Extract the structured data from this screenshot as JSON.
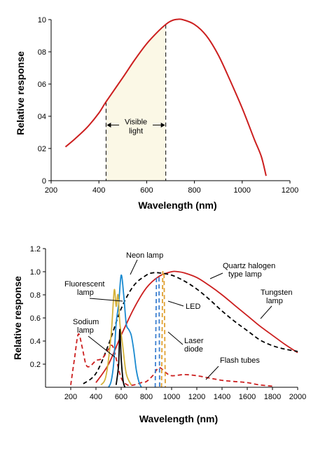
{
  "chart_data": [
    {
      "type": "line",
      "xlabel": "Wavelength (nm)",
      "ylabel": "Relative response",
      "xlim": [
        200,
        1200
      ],
      "ylim": [
        0,
        10
      ],
      "x_ticks": [
        200,
        400,
        600,
        800,
        1000,
        1200
      ],
      "x_tick_labels": [
        "200",
        "400",
        "600",
        "800",
        "1000",
        "1200"
      ],
      "y_ticks": [
        0,
        2,
        4,
        6,
        8,
        10
      ],
      "y_tick_labels": [
        "0",
        "02",
        "04",
        "06",
        "08",
        "10"
      ],
      "grid": false,
      "band": {
        "label_line1": "Visible",
        "label_line2": "light",
        "from": 430,
        "to": 680,
        "color": "#fbf8e6"
      },
      "series": [
        {
          "color": "#cc1f1f",
          "style": "solid",
          "x": [
            260,
            300,
            350,
            400,
            430,
            500,
            550,
            600,
            650,
            680,
            700,
            720,
            750,
            800,
            850,
            900,
            950,
            1000,
            1050,
            1080,
            1100
          ],
          "y": [
            2.1,
            2.6,
            3.3,
            4.2,
            4.9,
            6.4,
            7.5,
            8.5,
            9.3,
            9.7,
            9.9,
            10.0,
            10.0,
            9.7,
            9.0,
            7.8,
            6.2,
            4.5,
            2.6,
            1.5,
            0.3
          ]
        }
      ]
    },
    {
      "type": "line",
      "xlabel": "Wavelength (nm)",
      "ylabel": "Relative response",
      "xlim": [
        0,
        2000
      ],
      "ylim": [
        0,
        1.2
      ],
      "x_ticks": [
        200,
        400,
        600,
        800,
        1000,
        1200,
        1400,
        1600,
        1800,
        2000
      ],
      "x_tick_labels": [
        "200",
        "400",
        "600",
        "800",
        "1000",
        "1200",
        "1400",
        "1600",
        "1800",
        "2000"
      ],
      "y_ticks": [
        0.2,
        0.4,
        0.6,
        0.8,
        1.0,
        1.2
      ],
      "y_tick_labels": [
        "0.2",
        "0.4",
        "0.6",
        "0.8",
        "1.0",
        "1.2"
      ],
      "grid": false,
      "annotations": [
        {
          "text": "Neon lamp"
        },
        {
          "text": "Fluorescent"
        },
        {
          "text": "lamp"
        },
        {
          "text": "Sodium"
        },
        {
          "text": "lamp"
        },
        {
          "text": "Quartz halogen"
        },
        {
          "text": "type lamp"
        },
        {
          "text": "Tungsten"
        },
        {
          "text": "lamp"
        },
        {
          "text": "LED"
        },
        {
          "text": "Laser"
        },
        {
          "text": "diode"
        },
        {
          "text": "Flash tubes"
        }
      ],
      "series": [
        {
          "color": "#cc1f1f",
          "style": "solid",
          "x": [
            400,
            500,
            600,
            700,
            800,
            900,
            1000,
            1050,
            1100,
            1200,
            1300,
            1400,
            1500,
            1600,
            1700,
            1800,
            1900,
            2000
          ],
          "y": [
            0.04,
            0.2,
            0.45,
            0.68,
            0.86,
            0.96,
            1.0,
            1.0,
            0.99,
            0.95,
            0.88,
            0.8,
            0.71,
            0.62,
            0.53,
            0.45,
            0.37,
            0.3
          ]
        },
        {
          "color": "#000000",
          "style": "dashed",
          "x": [
            300,
            400,
            500,
            600,
            700,
            800,
            850,
            900,
            1000,
            1100,
            1200,
            1300,
            1400,
            1500,
            1600,
            1700,
            1800,
            1900,
            2000
          ],
          "y": [
            0.03,
            0.12,
            0.37,
            0.68,
            0.88,
            0.97,
            0.99,
            0.99,
            0.97,
            0.92,
            0.85,
            0.76,
            0.66,
            0.57,
            0.49,
            0.41,
            0.36,
            0.33,
            0.31
          ]
        },
        {
          "color": "#cc1f1f",
          "style": "dashed",
          "x": [
            200,
            230,
            260,
            290,
            320,
            350,
            400,
            450,
            500,
            530,
            560,
            600,
            650,
            700,
            760,
            800,
            850,
            900,
            950,
            1000,
            1100,
            1200,
            1300,
            1400,
            1500,
            1600,
            1700,
            1800
          ],
          "y": [
            0.02,
            0.25,
            0.46,
            0.35,
            0.2,
            0.18,
            0.23,
            0.25,
            0.33,
            0.36,
            0.25,
            0.08,
            0.02,
            0.02,
            0.04,
            0.05,
            0.1,
            0.17,
            0.13,
            0.1,
            0.11,
            0.1,
            0.08,
            0.06,
            0.05,
            0.04,
            0.02,
            0.01
          ]
        },
        {
          "color": "#1a8ad0",
          "style": "solid",
          "x": [
            500,
            520,
            540,
            560,
            580,
            600,
            620,
            640,
            660,
            680,
            700,
            720,
            740,
            760
          ],
          "y": [
            0.0,
            0.05,
            0.2,
            0.55,
            0.72,
            0.97,
            0.8,
            0.55,
            0.5,
            0.45,
            0.32,
            0.15,
            0.05,
            0.0
          ]
        },
        {
          "color": "#d4b23a",
          "style": "solid",
          "x": [
            440,
            480,
            520,
            545,
            560,
            575,
            590,
            610,
            640,
            680
          ],
          "y": [
            0.02,
            0.1,
            0.45,
            0.84,
            0.7,
            0.8,
            0.55,
            0.38,
            0.12,
            0.02
          ]
        },
        {
          "color": "#000000",
          "style": "solid",
          "x": [
            560,
            580,
            589,
            600,
            615,
            630
          ],
          "y": [
            0.02,
            0.2,
            0.5,
            0.25,
            0.06,
            0.0
          ]
        },
        {
          "color": "#3b7fd0",
          "style": "dashed",
          "x": [
            870,
            880,
            890,
            900,
            905,
            910
          ],
          "y": [
            0.0,
            0.95,
            0.95,
            0.95,
            0.0,
            0.0
          ]
        },
        {
          "color": "#e0a030",
          "style": "dashed",
          "x": [
            920,
            930,
            940,
            950
          ],
          "y": [
            0.0,
            1.0,
            1.0,
            0.0
          ]
        }
      ]
    }
  ]
}
